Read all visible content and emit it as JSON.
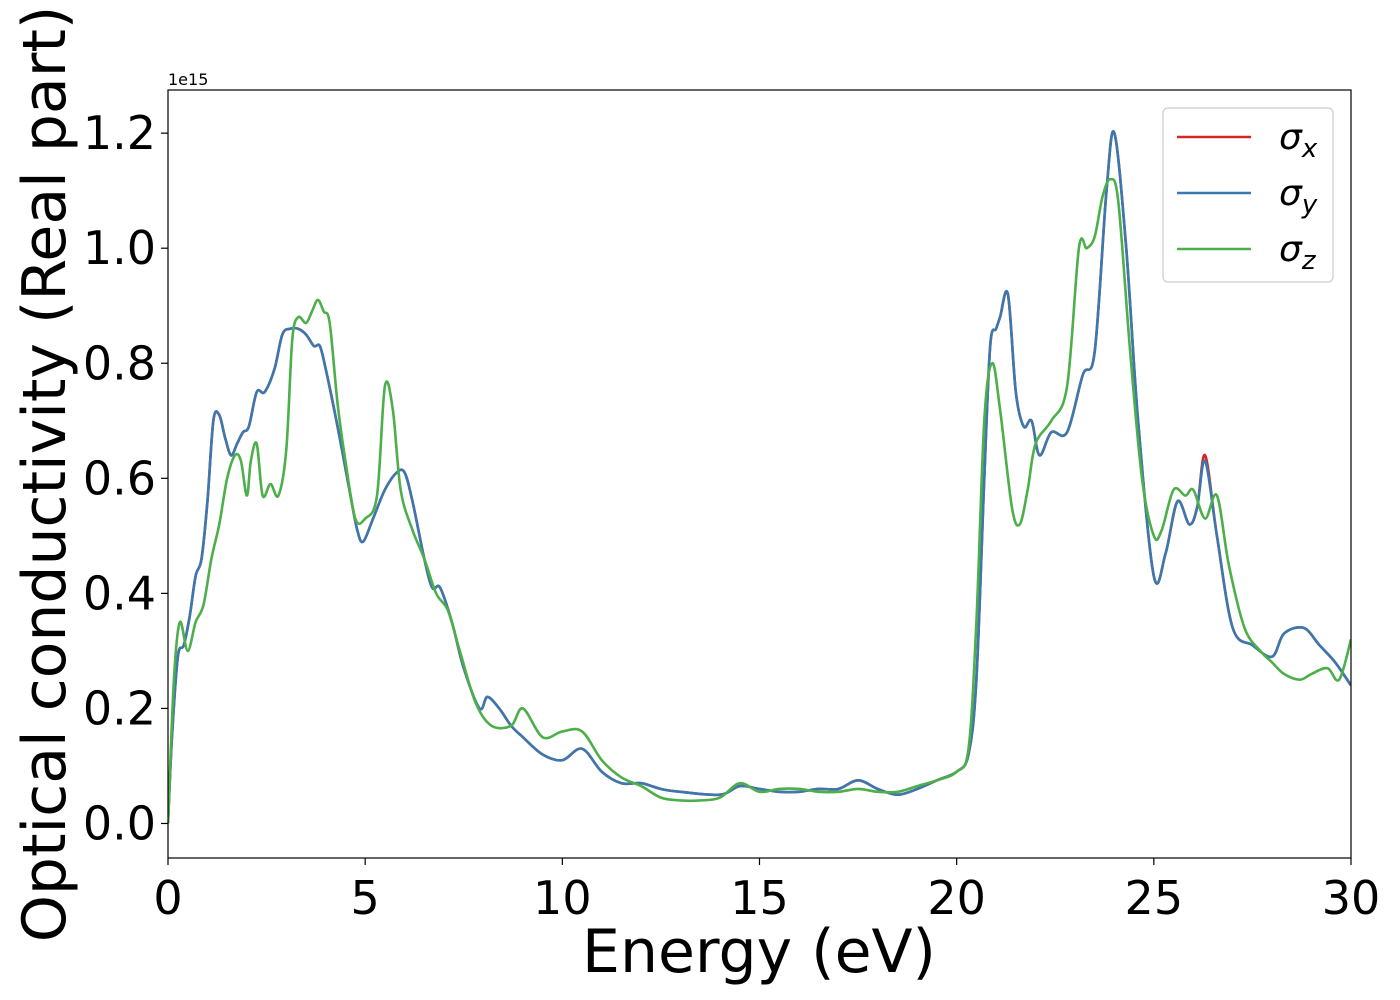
{
  "chart_data": {
    "type": "line",
    "xlabel": "Energy (eV)",
    "ylabel": "Optical conductivity (Real part)",
    "y_offset_text": "1e15",
    "y_scale": 1000000000000000.0,
    "xlim": [
      0,
      30
    ],
    "ylim": [
      -0.06,
      1.275
    ],
    "xticks": [
      0,
      5,
      10,
      15,
      20,
      25,
      30
    ],
    "xtick_labels": [
      "0",
      "5",
      "10",
      "15",
      "20",
      "25",
      "30"
    ],
    "yticks": [
      0.0,
      0.2,
      0.4,
      0.6,
      0.8,
      1.0,
      1.2
    ],
    "ytick_labels": [
      "0.0",
      "0.2",
      "0.4",
      "0.6",
      "0.8",
      "1.0",
      "1.2"
    ],
    "grid": false,
    "legend_position": "top-right",
    "series": [
      {
        "name": "σx",
        "symbol": "σ",
        "subscript": "x",
        "color": "#d62728",
        "points": [
          [
            0,
            0.0
          ],
          [
            0.1,
            0.15
          ],
          [
            0.25,
            0.29
          ],
          [
            0.4,
            0.31
          ],
          [
            0.55,
            0.36
          ],
          [
            0.7,
            0.43
          ],
          [
            0.85,
            0.46
          ],
          [
            1.0,
            0.56
          ],
          [
            1.15,
            0.7
          ],
          [
            1.3,
            0.71
          ],
          [
            1.45,
            0.67
          ],
          [
            1.6,
            0.64
          ],
          [
            1.75,
            0.66
          ],
          [
            1.9,
            0.68
          ],
          [
            2.05,
            0.69
          ],
          [
            2.25,
            0.75
          ],
          [
            2.45,
            0.75
          ],
          [
            2.7,
            0.79
          ],
          [
            2.9,
            0.85
          ],
          [
            3.1,
            0.86
          ],
          [
            3.3,
            0.86
          ],
          [
            3.5,
            0.85
          ],
          [
            3.7,
            0.83
          ],
          [
            3.85,
            0.83
          ],
          [
            4.0,
            0.79
          ],
          [
            4.3,
            0.69
          ],
          [
            4.6,
            0.58
          ],
          [
            4.8,
            0.51
          ],
          [
            4.95,
            0.49
          ],
          [
            5.2,
            0.53
          ],
          [
            5.5,
            0.58
          ],
          [
            5.8,
            0.61
          ],
          [
            6.0,
            0.61
          ],
          [
            6.2,
            0.56
          ],
          [
            6.5,
            0.46
          ],
          [
            6.7,
            0.41
          ],
          [
            6.9,
            0.41
          ],
          [
            7.2,
            0.35
          ],
          [
            7.5,
            0.27
          ],
          [
            7.9,
            0.2
          ],
          [
            8.1,
            0.22
          ],
          [
            8.4,
            0.2
          ],
          [
            8.7,
            0.17
          ],
          [
            9.0,
            0.15
          ],
          [
            9.5,
            0.12
          ],
          [
            10.0,
            0.11
          ],
          [
            10.5,
            0.13
          ],
          [
            11.0,
            0.09
          ],
          [
            11.5,
            0.07
          ],
          [
            12.0,
            0.07
          ],
          [
            12.5,
            0.06
          ],
          [
            13.0,
            0.055
          ],
          [
            14.0,
            0.05
          ],
          [
            14.5,
            0.065
          ],
          [
            15.0,
            0.06
          ],
          [
            15.5,
            0.055
          ],
          [
            16.0,
            0.055
          ],
          [
            16.5,
            0.06
          ],
          [
            17.0,
            0.06
          ],
          [
            17.5,
            0.075
          ],
          [
            18.0,
            0.06
          ],
          [
            18.5,
            0.05
          ],
          [
            19.0,
            0.06
          ],
          [
            19.5,
            0.075
          ],
          [
            20.0,
            0.09
          ],
          [
            20.3,
            0.12
          ],
          [
            20.5,
            0.25
          ],
          [
            20.7,
            0.6
          ],
          [
            20.85,
            0.83
          ],
          [
            21.0,
            0.86
          ],
          [
            21.1,
            0.88
          ],
          [
            21.3,
            0.92
          ],
          [
            21.5,
            0.75
          ],
          [
            21.7,
            0.69
          ],
          [
            21.9,
            0.7
          ],
          [
            22.1,
            0.64
          ],
          [
            22.4,
            0.68
          ],
          [
            22.8,
            0.68
          ],
          [
            23.2,
            0.78
          ],
          [
            23.5,
            0.82
          ],
          [
            23.8,
            1.1
          ],
          [
            24.0,
            1.2
          ],
          [
            24.3,
            1.0
          ],
          [
            24.6,
            0.7
          ],
          [
            25.0,
            0.43
          ],
          [
            25.3,
            0.47
          ],
          [
            25.6,
            0.56
          ],
          [
            25.9,
            0.52
          ],
          [
            26.1,
            0.55
          ],
          [
            26.3,
            0.64
          ],
          [
            26.6,
            0.5
          ],
          [
            27.0,
            0.34
          ],
          [
            27.5,
            0.31
          ],
          [
            28.0,
            0.29
          ],
          [
            28.3,
            0.33
          ],
          [
            28.8,
            0.34
          ],
          [
            29.2,
            0.31
          ],
          [
            29.6,
            0.28
          ],
          [
            30.0,
            0.24
          ]
        ]
      },
      {
        "name": "σy",
        "symbol": "σ",
        "subscript": "y",
        "color": "#3a78b0",
        "points": [
          [
            0,
            0.0
          ],
          [
            0.1,
            0.15
          ],
          [
            0.25,
            0.29
          ],
          [
            0.4,
            0.31
          ],
          [
            0.55,
            0.36
          ],
          [
            0.7,
            0.43
          ],
          [
            0.85,
            0.46
          ],
          [
            1.0,
            0.56
          ],
          [
            1.15,
            0.7
          ],
          [
            1.3,
            0.71
          ],
          [
            1.45,
            0.67
          ],
          [
            1.6,
            0.64
          ],
          [
            1.75,
            0.66
          ],
          [
            1.9,
            0.68
          ],
          [
            2.05,
            0.69
          ],
          [
            2.25,
            0.75
          ],
          [
            2.45,
            0.75
          ],
          [
            2.7,
            0.79
          ],
          [
            2.9,
            0.85
          ],
          [
            3.1,
            0.86
          ],
          [
            3.3,
            0.86
          ],
          [
            3.5,
            0.85
          ],
          [
            3.7,
            0.83
          ],
          [
            3.85,
            0.83
          ],
          [
            4.0,
            0.79
          ],
          [
            4.3,
            0.69
          ],
          [
            4.6,
            0.58
          ],
          [
            4.8,
            0.51
          ],
          [
            4.95,
            0.49
          ],
          [
            5.2,
            0.53
          ],
          [
            5.5,
            0.58
          ],
          [
            5.8,
            0.61
          ],
          [
            6.0,
            0.61
          ],
          [
            6.2,
            0.56
          ],
          [
            6.5,
            0.46
          ],
          [
            6.7,
            0.41
          ],
          [
            6.9,
            0.41
          ],
          [
            7.2,
            0.35
          ],
          [
            7.5,
            0.27
          ],
          [
            7.9,
            0.2
          ],
          [
            8.1,
            0.22
          ],
          [
            8.4,
            0.2
          ],
          [
            8.7,
            0.17
          ],
          [
            9.0,
            0.15
          ],
          [
            9.5,
            0.12
          ],
          [
            10.0,
            0.11
          ],
          [
            10.5,
            0.13
          ],
          [
            11.0,
            0.09
          ],
          [
            11.5,
            0.07
          ],
          [
            12.0,
            0.07
          ],
          [
            12.5,
            0.06
          ],
          [
            13.0,
            0.055
          ],
          [
            14.0,
            0.05
          ],
          [
            14.5,
            0.065
          ],
          [
            15.0,
            0.06
          ],
          [
            15.5,
            0.055
          ],
          [
            16.0,
            0.055
          ],
          [
            16.5,
            0.06
          ],
          [
            17.0,
            0.06
          ],
          [
            17.5,
            0.075
          ],
          [
            18.0,
            0.06
          ],
          [
            18.5,
            0.05
          ],
          [
            19.0,
            0.06
          ],
          [
            19.5,
            0.075
          ],
          [
            20.0,
            0.09
          ],
          [
            20.3,
            0.12
          ],
          [
            20.5,
            0.25
          ],
          [
            20.7,
            0.6
          ],
          [
            20.85,
            0.83
          ],
          [
            21.0,
            0.86
          ],
          [
            21.1,
            0.88
          ],
          [
            21.3,
            0.92
          ],
          [
            21.5,
            0.75
          ],
          [
            21.7,
            0.69
          ],
          [
            21.9,
            0.7
          ],
          [
            22.1,
            0.64
          ],
          [
            22.4,
            0.68
          ],
          [
            22.8,
            0.68
          ],
          [
            23.2,
            0.78
          ],
          [
            23.5,
            0.82
          ],
          [
            23.8,
            1.1
          ],
          [
            24.0,
            1.2
          ],
          [
            24.3,
            1.0
          ],
          [
            24.6,
            0.7
          ],
          [
            25.0,
            0.43
          ],
          [
            25.3,
            0.47
          ],
          [
            25.6,
            0.56
          ],
          [
            25.9,
            0.52
          ],
          [
            26.1,
            0.55
          ],
          [
            26.3,
            0.63
          ],
          [
            26.6,
            0.5
          ],
          [
            27.0,
            0.34
          ],
          [
            27.5,
            0.31
          ],
          [
            28.0,
            0.29
          ],
          [
            28.3,
            0.33
          ],
          [
            28.8,
            0.34
          ],
          [
            29.2,
            0.31
          ],
          [
            29.6,
            0.28
          ],
          [
            30.0,
            0.24
          ]
        ]
      },
      {
        "name": "σz",
        "symbol": "σ",
        "subscript": "z",
        "color": "#4daf4a",
        "points": [
          [
            0,
            0.0
          ],
          [
            0.15,
            0.25
          ],
          [
            0.3,
            0.35
          ],
          [
            0.5,
            0.3
          ],
          [
            0.7,
            0.35
          ],
          [
            0.9,
            0.38
          ],
          [
            1.1,
            0.46
          ],
          [
            1.3,
            0.52
          ],
          [
            1.5,
            0.6
          ],
          [
            1.7,
            0.64
          ],
          [
            1.85,
            0.63
          ],
          [
            2.0,
            0.57
          ],
          [
            2.1,
            0.63
          ],
          [
            2.25,
            0.66
          ],
          [
            2.4,
            0.57
          ],
          [
            2.6,
            0.59
          ],
          [
            2.8,
            0.57
          ],
          [
            3.0,
            0.65
          ],
          [
            3.15,
            0.84
          ],
          [
            3.3,
            0.88
          ],
          [
            3.5,
            0.87
          ],
          [
            3.65,
            0.89
          ],
          [
            3.8,
            0.91
          ],
          [
            3.95,
            0.89
          ],
          [
            4.1,
            0.87
          ],
          [
            4.3,
            0.73
          ],
          [
            4.5,
            0.63
          ],
          [
            4.75,
            0.53
          ],
          [
            5.0,
            0.53
          ],
          [
            5.3,
            0.57
          ],
          [
            5.5,
            0.76
          ],
          [
            5.7,
            0.72
          ],
          [
            5.9,
            0.58
          ],
          [
            6.2,
            0.51
          ],
          [
            6.5,
            0.46
          ],
          [
            6.8,
            0.4
          ],
          [
            7.1,
            0.37
          ],
          [
            7.4,
            0.3
          ],
          [
            7.8,
            0.21
          ],
          [
            8.2,
            0.17
          ],
          [
            8.7,
            0.17
          ],
          [
            9.0,
            0.2
          ],
          [
            9.5,
            0.15
          ],
          [
            10.0,
            0.16
          ],
          [
            10.5,
            0.16
          ],
          [
            11.0,
            0.11
          ],
          [
            11.5,
            0.08
          ],
          [
            12.0,
            0.065
          ],
          [
            12.5,
            0.045
          ],
          [
            13.0,
            0.04
          ],
          [
            13.5,
            0.04
          ],
          [
            14.0,
            0.045
          ],
          [
            14.5,
            0.07
          ],
          [
            15.0,
            0.055
          ],
          [
            15.5,
            0.06
          ],
          [
            16.0,
            0.06
          ],
          [
            16.5,
            0.055
          ],
          [
            17.0,
            0.055
          ],
          [
            17.5,
            0.06
          ],
          [
            18.0,
            0.055
          ],
          [
            18.5,
            0.055
          ],
          [
            19.0,
            0.065
          ],
          [
            19.5,
            0.075
          ],
          [
            20.0,
            0.09
          ],
          [
            20.3,
            0.13
          ],
          [
            20.5,
            0.35
          ],
          [
            20.7,
            0.7
          ],
          [
            20.9,
            0.8
          ],
          [
            21.1,
            0.72
          ],
          [
            21.4,
            0.55
          ],
          [
            21.6,
            0.52
          ],
          [
            21.8,
            0.58
          ],
          [
            22.0,
            0.66
          ],
          [
            22.4,
            0.7
          ],
          [
            22.8,
            0.76
          ],
          [
            23.1,
            1.0
          ],
          [
            23.3,
            1.0
          ],
          [
            23.5,
            1.02
          ],
          [
            23.7,
            1.09
          ],
          [
            23.9,
            1.12
          ],
          [
            24.1,
            1.08
          ],
          [
            24.4,
            0.82
          ],
          [
            24.7,
            0.6
          ],
          [
            25.0,
            0.5
          ],
          [
            25.2,
            0.51
          ],
          [
            25.5,
            0.58
          ],
          [
            25.8,
            0.57
          ],
          [
            26.0,
            0.58
          ],
          [
            26.3,
            0.53
          ],
          [
            26.6,
            0.57
          ],
          [
            26.9,
            0.45
          ],
          [
            27.3,
            0.34
          ],
          [
            27.7,
            0.3
          ],
          [
            28.0,
            0.28
          ],
          [
            28.3,
            0.26
          ],
          [
            28.7,
            0.25
          ],
          [
            29.0,
            0.26
          ],
          [
            29.4,
            0.27
          ],
          [
            29.7,
            0.25
          ],
          [
            30.0,
            0.32
          ]
        ]
      }
    ]
  }
}
